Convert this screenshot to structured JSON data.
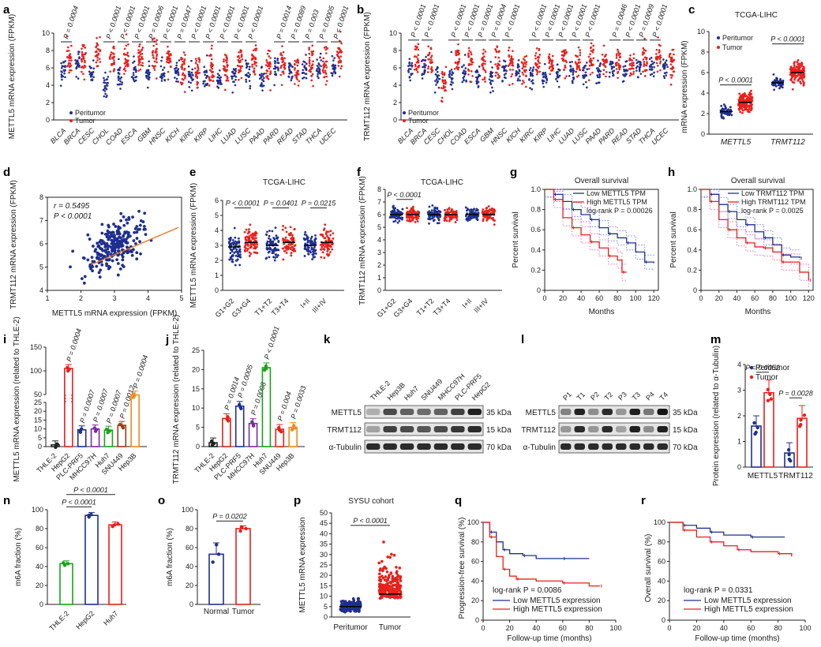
{
  "panel_letters": [
    "a",
    "b",
    "c",
    "d",
    "e",
    "f",
    "g",
    "h",
    "i",
    "j",
    "k",
    "l",
    "m",
    "n",
    "o",
    "p",
    "q",
    "r"
  ],
  "colors": {
    "peri": "#1f2f8f",
    "tumor": "#e8201c",
    "green": "#1aa31a",
    "purple": "#7a2ba6",
    "brown": "#9a3a1a",
    "orange": "#f08a1f",
    "orange_line": "#e87722",
    "pink_ci": "#f06ab0",
    "blue_ci": "#6f7ff0"
  },
  "legend": {
    "peritumor": "Peritumor",
    "tumor": "Tumor"
  },
  "figure_a": {
    "ylabel": "METTL5 mRNA expression (FPKM)",
    "y_ticks": [
      "0",
      "2",
      "4",
      "6",
      "8",
      "10"
    ],
    "categories": [
      "BLCA",
      "BRCA",
      "CESC",
      "CHOL",
      "COAD",
      "ESCA",
      "GBM",
      "HNSC",
      "KICH",
      "KIRC",
      "KIRP",
      "LIHC",
      "LUAD",
      "LUSC",
      "PAAD",
      "PARD",
      "READ",
      "STAD",
      "THCA",
      "UCEC"
    ],
    "pvalues": [
      "P = 0.0004",
      "",
      "",
      "P < 0.0001",
      "P < 0.0001",
      "P < 0.0001",
      "P = 0.0006",
      "P < 0.0001",
      "P = 0.0047",
      "P < 0.0001",
      "P < 0.0001",
      "P < 0.0001",
      "P < 0.0001",
      "P < 0.0001",
      "",
      "P = 0.0014",
      "P = 0.0089",
      "P = 0.003",
      "P = 0.0005",
      "P < 0.0001"
    ]
  },
  "figure_b": {
    "ylabel": "TRMT112 mRNA expression (FPKM)",
    "y_ticks": [
      "0",
      "2",
      "4",
      "6",
      "8",
      "10"
    ],
    "categories": [
      "BLCA",
      "BRCA",
      "CESC",
      "CHOL",
      "COAD",
      "ESCA",
      "GBM",
      "HNSC",
      "KICH",
      "KIRC",
      "KIRP",
      "LIHC",
      "LUAD",
      "LUSC",
      "PAAD",
      "PARD",
      "READ",
      "STAD",
      "THCA",
      "UCEC"
    ],
    "pvalues": [
      "P < 0.0001",
      "P < 0.0001",
      "",
      "P < 0.0001",
      "P < 0.0001",
      "P = 0.0001",
      "P = 0.0004",
      "P < 0.0001",
      "",
      "P < 0.0001",
      "P < 0.0001",
      "P < 0.0001",
      "P < 0.0001",
      "P < 0.0001",
      "",
      "P = 0.0046",
      "P < 0.0001",
      "P = 0.0009",
      "P < 0.0001",
      ""
    ]
  },
  "figure_c": {
    "title": "TCGA-LIHC",
    "ylabel": "mRNA expression (FPKM)",
    "y_ticks": [
      "0",
      "2",
      "4",
      "6",
      "8",
      "10"
    ],
    "groups": [
      "METTL5",
      "TRMT112"
    ],
    "pvalues": [
      "P < 0.0001",
      "P < 0.0001"
    ]
  },
  "figure_d": {
    "ylabel": "TRMT112 mRNA expression (FPKM)",
    "xlabel": "METTL5 mRNA expression (FPKM)",
    "r": "r = 0.5495",
    "p": "P < 0.0001",
    "x_ticks": [
      "1",
      "2",
      "3",
      "4",
      "5"
    ],
    "y_ticks": [
      "4",
      "5",
      "6",
      "7",
      "8"
    ]
  },
  "figure_e": {
    "title": "TCGA-LIHC",
    "ylabel": "METTL5 mRNA expression (FPKM)",
    "y_ticks": [
      "0",
      "1",
      "2",
      "3",
      "4",
      "5",
      "6"
    ],
    "groups": [
      "G1+G2",
      "G3+G4",
      "T1+T2",
      "T3+T4",
      "I+II",
      "III+IV"
    ],
    "pvalues": [
      "P < 0.0001",
      "P = 0.0401",
      "P = 0.0215"
    ]
  },
  "figure_f": {
    "title": "TCGA-LIHC",
    "ylabel": "TRMT112 mRNA expression (FPKM)",
    "y_ticks": [
      "0",
      "1",
      "2",
      "3",
      "4",
      "5",
      "6",
      "7",
      "8"
    ],
    "groups": [
      "G1+G2",
      "G3+G4",
      "T1+T2",
      "T3+T4",
      "I+II",
      "III+IV"
    ],
    "pvalues": [
      "P < 0.0001"
    ]
  },
  "figure_g": {
    "title": "Overall survival",
    "ylabel": "Percent survival",
    "xlabel": "Months",
    "legend_low": "Low METTL5 TPM",
    "legend_high": "High METTL5 TPM",
    "logrank": "log-rank P = 0.00026",
    "x_ticks": [
      "0",
      "20",
      "40",
      "60",
      "80",
      "100",
      "120"
    ],
    "y_ticks": [
      "0",
      "0.2",
      "0.4",
      "0.6",
      "0.8",
      "1.0"
    ],
    "low_curve": [
      [
        0,
        1.0
      ],
      [
        10,
        0.95
      ],
      [
        20,
        0.88
      ],
      [
        30,
        0.8
      ],
      [
        40,
        0.75
      ],
      [
        50,
        0.7
      ],
      [
        60,
        0.62
      ],
      [
        70,
        0.56
      ],
      [
        80,
        0.52
      ],
      [
        90,
        0.47
      ],
      [
        100,
        0.38
      ],
      [
        110,
        0.28
      ],
      [
        120,
        0.27
      ]
    ],
    "high_curve": [
      [
        0,
        1.0
      ],
      [
        10,
        0.9
      ],
      [
        20,
        0.72
      ],
      [
        30,
        0.62
      ],
      [
        40,
        0.55
      ],
      [
        50,
        0.48
      ],
      [
        60,
        0.42
      ],
      [
        70,
        0.34
      ],
      [
        80,
        0.3
      ],
      [
        85,
        0.18
      ],
      [
        90,
        0.18
      ]
    ]
  },
  "figure_h": {
    "title": "Overall survival",
    "ylabel": "Percent survival",
    "xlabel": "Months",
    "legend_low": "Low TRMT112 TPM",
    "legend_high": "High TRMT112 TPM",
    "logrank": "log-rank P = 0.0025",
    "x_ticks": [
      "0",
      "20",
      "40",
      "60",
      "80",
      "100",
      "120"
    ],
    "y_ticks": [
      "0",
      "0.2",
      "0.4",
      "0.6",
      "0.8",
      "1.0"
    ],
    "low_curve": [
      [
        0,
        1.0
      ],
      [
        10,
        0.95
      ],
      [
        20,
        0.85
      ],
      [
        30,
        0.78
      ],
      [
        40,
        0.7
      ],
      [
        50,
        0.65
      ],
      [
        60,
        0.58
      ],
      [
        70,
        0.52
      ],
      [
        80,
        0.45
      ],
      [
        90,
        0.35
      ],
      [
        100,
        0.33
      ],
      [
        110,
        0.32
      ]
    ],
    "high_curve": [
      [
        0,
        1.0
      ],
      [
        10,
        0.88
      ],
      [
        20,
        0.7
      ],
      [
        30,
        0.6
      ],
      [
        40,
        0.52
      ],
      [
        50,
        0.47
      ],
      [
        60,
        0.43
      ],
      [
        70,
        0.42
      ],
      [
        80,
        0.38
      ],
      [
        90,
        0.28
      ],
      [
        110,
        0.18
      ],
      [
        120,
        0.1
      ]
    ]
  },
  "figure_i": {
    "ylabel": "METTL5 mRNA expression (related to THLE-2)",
    "y_ticks": [
      "0",
      "5",
      "10",
      "15",
      "20",
      "25",
      "50",
      "100",
      "150"
    ],
    "bars": [
      {
        "label": "THLE-2",
        "value": 1.0,
        "p": ""
      },
      {
        "label": "HepG2",
        "value": 105,
        "p": "P = 0.0004"
      },
      {
        "label": "PLC-PRF5",
        "value": 9.5,
        "p": "P = 0.0007"
      },
      {
        "label": "MHCC97H",
        "value": 10,
        "p": "P = 0.0007"
      },
      {
        "label": "Huh7",
        "value": 9.3,
        "p": "P = 0.0007"
      },
      {
        "label": "SNU449",
        "value": 12,
        "p": "P = 0.0012"
      },
      {
        "label": "Hep3B",
        "value": 49,
        "p": "P = 0.0004"
      }
    ]
  },
  "figure_j": {
    "ylabel": "TRMT112 mRNA expression (related to THLE-2)",
    "y_ticks": [
      "0",
      "5",
      "10",
      "15",
      "20",
      "25"
    ],
    "bars": [
      {
        "label": "THLE-2",
        "value": 1.0,
        "p": ""
      },
      {
        "label": "HepG2",
        "value": 7.3,
        "p": "P = 0.0014"
      },
      {
        "label": "PLC-PRF5",
        "value": 10.5,
        "p": "P = 0.0005"
      },
      {
        "label": "MHCC97H",
        "value": 6.0,
        "p": "P = 0.0008"
      },
      {
        "label": "Huh7",
        "value": 20.5,
        "p": "P < 0.0001"
      },
      {
        "label": "SNU449",
        "value": 4.5,
        "p": "P = 0.004"
      },
      {
        "label": "Hep3B",
        "value": 5.0,
        "p": "P = 0.0033"
      }
    ]
  },
  "figure_k": {
    "lanes": [
      "THLE-2",
      "Hep3B",
      "Huh7",
      "SNU449",
      "MHCC97H",
      "PLC-PRF5",
      "HepG2"
    ],
    "rows": [
      "METTL5",
      "TRMT112",
      "α-Tubulin"
    ],
    "sizes": [
      "35 kDa",
      "15 kDa",
      "70 kDa"
    ]
  },
  "figure_l": {
    "lanes": [
      "P1",
      "T1",
      "P2",
      "T2",
      "P3",
      "T3",
      "P4",
      "T4"
    ],
    "rows": [
      "METTL5",
      "TRMT112",
      "α-Tubulin"
    ],
    "sizes": [
      "35 kDa",
      "15 kDa",
      "70 kDa"
    ]
  },
  "figure_m": {
    "ylabel": "Protein expression (related to α-Tubulin)",
    "y_ticks": [
      "0",
      "1",
      "2",
      "3",
      "4"
    ],
    "groups": [
      "METTL5",
      "TRMT112"
    ],
    "peri_values": [
      1.6,
      0.55
    ],
    "tumor_values": [
      2.9,
      1.9
    ],
    "pvalues": [
      "P = 0.0052",
      "P = 0.0028"
    ]
  },
  "figure_n": {
    "ylabel": "m6A fraction (%)",
    "y_ticks": [
      "0",
      "20",
      "40",
      "60",
      "80",
      "100"
    ],
    "bars": [
      {
        "label": "THLE-2",
        "value": 43
      },
      {
        "label": "HepG2",
        "value": 94
      },
      {
        "label": "Huh7",
        "value": 84
      }
    ],
    "pvalues": [
      "P < 0.0001",
      "P < 0.0001"
    ]
  },
  "figure_o": {
    "ylabel": "m6A fraction (%)",
    "y_ticks": [
      "0",
      "20",
      "40",
      "60",
      "80",
      "100"
    ],
    "bars": [
      {
        "label": "Normal",
        "value": 53
      },
      {
        "label": "Tumor",
        "value": 80
      }
    ],
    "pvalues": [
      "P = 0.0202"
    ]
  },
  "figure_p": {
    "title": "SYSU cohort",
    "ylabel": "METTL5 mRNA expression",
    "y_ticks": [
      "0",
      "5",
      "10",
      "15",
      "20",
      "25",
      "30",
      "35",
      "40",
      "45",
      "50"
    ],
    "groups": [
      "Peritumor",
      "Tumor"
    ],
    "pvalues": [
      "P < 0.0001"
    ]
  },
  "figure_q": {
    "ylabel": "Progression-free survival (%)",
    "xlabel": "Follow-up time (months)",
    "logrank": "log-rank P = 0.0086",
    "legend_low": "Low METTL5 expression",
    "legend_high": "High METTL5 expression",
    "x_ticks": [
      "0",
      "20",
      "40",
      "60",
      "80",
      "100"
    ],
    "y_ticks": [
      "0",
      "20",
      "40",
      "60",
      "80",
      "100"
    ],
    "low_curve": [
      [
        0,
        100
      ],
      [
        5,
        90
      ],
      [
        10,
        80
      ],
      [
        15,
        72
      ],
      [
        20,
        68
      ],
      [
        30,
        66
      ],
      [
        40,
        63
      ],
      [
        60,
        63
      ],
      [
        80,
        63
      ]
    ],
    "high_curve": [
      [
        0,
        100
      ],
      [
        5,
        85
      ],
      [
        10,
        65
      ],
      [
        15,
        52
      ],
      [
        20,
        45
      ],
      [
        25,
        42
      ],
      [
        40,
        40
      ],
      [
        60,
        38
      ],
      [
        80,
        35
      ],
      [
        88,
        35
      ]
    ]
  },
  "figure_r": {
    "ylabel": "Overall survival (%)",
    "xlabel": "Follow-up time (months)",
    "logrank": "log-rank P = 0.0331",
    "legend_low": "Low METTL5 expression",
    "legend_high": "High METTL5 expression",
    "x_ticks": [
      "0",
      "20",
      "40",
      "60",
      "80",
      "100"
    ],
    "y_ticks": [
      "0",
      "20",
      "40",
      "60",
      "80",
      "100"
    ],
    "low_curve": [
      [
        0,
        100
      ],
      [
        10,
        97
      ],
      [
        20,
        94
      ],
      [
        30,
        90
      ],
      [
        40,
        87
      ],
      [
        60,
        85
      ],
      [
        85,
        85
      ]
    ],
    "high_curve": [
      [
        0,
        100
      ],
      [
        10,
        92
      ],
      [
        20,
        85
      ],
      [
        30,
        80
      ],
      [
        40,
        76
      ],
      [
        50,
        72
      ],
      [
        60,
        70
      ],
      [
        80,
        68
      ],
      [
        90,
        65
      ]
    ]
  },
  "chart_data": [
    {
      "type": "scatter",
      "panel": "a",
      "title": "",
      "ylabel": "METTL5 mRNA expression (FPKM)",
      "categories": [
        "BLCA",
        "BRCA",
        "CESC",
        "CHOL",
        "COAD",
        "ESCA",
        "GBM",
        "HNSC",
        "KICH",
        "KIRC",
        "KIRP",
        "LIHC",
        "LUAD",
        "LUSC",
        "PAAD",
        "PARD",
        "READ",
        "STAD",
        "THCA",
        "UCEC"
      ],
      "ylim": [
        0,
        10
      ]
    },
    {
      "type": "scatter",
      "panel": "b",
      "title": "",
      "ylabel": "TRMT112 mRNA expression (FPKM)",
      "ylim": [
        0,
        10
      ]
    },
    {
      "type": "line",
      "panel": "g",
      "title": "Overall survival"
    },
    {
      "type": "line",
      "panel": "h",
      "title": "Overall survival"
    },
    {
      "type": "bar",
      "panel": "i",
      "categories": [
        "THLE-2",
        "HepG2",
        "PLC-PRF5",
        "MHCC97H",
        "Huh7",
        "SNU449",
        "Hep3B"
      ],
      "values": [
        1.0,
        105,
        9.5,
        10,
        9.3,
        12,
        49
      ]
    },
    {
      "type": "bar",
      "panel": "j",
      "categories": [
        "THLE-2",
        "HepG2",
        "PLC-PRF5",
        "MHCC97H",
        "Huh7",
        "SNU449",
        "Hep3B"
      ],
      "values": [
        1.0,
        7.3,
        10.5,
        6.0,
        20.5,
        4.5,
        5.0
      ]
    },
    {
      "type": "bar",
      "panel": "m",
      "categories": [
        "METTL5",
        "TRMT112"
      ],
      "series": [
        {
          "name": "Peritumor",
          "values": [
            1.6,
            0.55
          ]
        },
        {
          "name": "Tumor",
          "values": [
            2.9,
            1.9
          ]
        }
      ],
      "ylim": [
        0,
        4
      ]
    },
    {
      "type": "bar",
      "panel": "n",
      "categories": [
        "THLE-2",
        "HepG2",
        "Huh7"
      ],
      "values": [
        43,
        94,
        84
      ],
      "ylim": [
        0,
        100
      ]
    },
    {
      "type": "bar",
      "panel": "o",
      "categories": [
        "Normal",
        "Tumor"
      ],
      "values": [
        53,
        80
      ],
      "ylim": [
        0,
        100
      ]
    },
    {
      "type": "line",
      "panel": "q"
    },
    {
      "type": "line",
      "panel": "r"
    }
  ]
}
